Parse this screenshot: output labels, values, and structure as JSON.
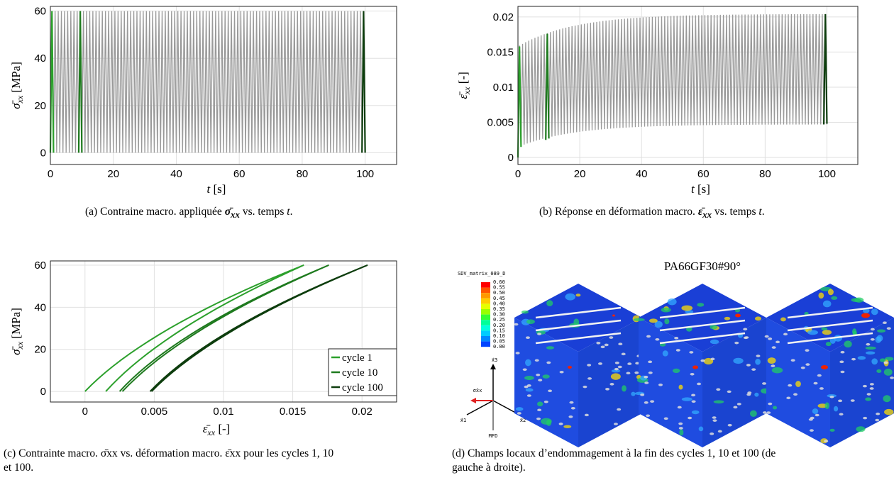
{
  "colors": {
    "gray": "#999999",
    "cycle1": "#2ca02c",
    "cycle10": "#1e7a1e",
    "cycle100": "#0d3d0d",
    "grid": "#e0e0e0"
  },
  "panel_a": {
    "ylabel_sym": "σ̄",
    "ylabel_sub": "xx",
    "ylabel_unit": "[MPa]",
    "xlabel_sym": "t",
    "xlabel_unit": "[s]",
    "caption_prefix": "(a) Contraine macro. appliquée",
    "caption_sym": "σ̄",
    "caption_sub": "xx",
    "caption_mid": "vs. temps",
    "caption_end": "t",
    "caption_tail": "."
  },
  "panel_b": {
    "ylabel_sym": "ε̄",
    "ylabel_sub": "xx",
    "ylabel_unit": "[-]",
    "xlabel_sym": "t",
    "xlabel_unit": "[s]",
    "caption_prefix": "(b) Réponse en déformation macro.",
    "caption_sym": "ε̄",
    "caption_sub": "xx",
    "caption_mid": "vs. temps",
    "caption_end": "t",
    "caption_tail": "."
  },
  "panel_c": {
    "ylabel_sym": "σ̄",
    "ylabel_sub": "xx",
    "ylabel_unit": "[MPa]",
    "xlabel_sym": "ε̄",
    "xlabel_sub": "xx",
    "xlabel_unit": "[-]",
    "caption_line1": "(c) Contrainte macro. σ̄xx vs. déformation macro. ε̄xx pour les cycles 1, 10",
    "caption_line2": "et 100."
  },
  "panel_d": {
    "title": "PA66GF30#90°",
    "colorbar_title": "SDV_matrix_089_D",
    "colorbar_labels": [
      "0.60",
      "0.55",
      "0.50",
      "0.45",
      "0.40",
      "0.35",
      "0.30",
      "0.25",
      "0.20",
      "0.15",
      "0.10",
      "0.05",
      "0.00"
    ],
    "axis_x3": "x⃗3",
    "axis_x1": "x⃗1",
    "axis_x2": "x⃗2",
    "axis_sigma": "σ̄xx",
    "axis_mfd": "MFD",
    "caption_line1": "(d) Champs locaux d’endommagement à la fin des cycles 1, 10 et 100 (de",
    "caption_line2": "gauche à droite)."
  },
  "chart_data": [
    {
      "type": "line",
      "title": "",
      "xlabel": "t [s]",
      "ylabel": "σ̄xx [MPa]",
      "xlim": [
        0,
        110
      ],
      "ylim": [
        -5,
        62
      ],
      "xticks": [
        0,
        20,
        40,
        60,
        80,
        100
      ],
      "yticks": [
        0,
        20,
        40,
        60
      ],
      "grid": true,
      "signal": {
        "min": 0,
        "max": 60,
        "cycles": 100,
        "period": 1
      },
      "series": [
        {
          "values_description_free": true,
          "x": [
            0,
            0.5,
            1
          ],
          "y": [
            0,
            60,
            0
          ]
        },
        {
          "x": [
            9,
            9.5,
            10
          ],
          "y": [
            0,
            60,
            0
          ]
        },
        {
          "x": [
            99,
            99.5,
            100
          ],
          "y": [
            0,
            60,
            0
          ]
        }
      ]
    },
    {
      "type": "line",
      "title": "",
      "xlabel": "t [s]",
      "ylabel": "ε̄xx [-]",
      "xlim": [
        0,
        110
      ],
      "ylim": [
        -0.001,
        0.0215
      ],
      "xticks": [
        0,
        20,
        40,
        60,
        80,
        100
      ],
      "yticks": [
        0,
        0.005,
        0.01,
        0.015,
        0.02
      ],
      "ytick_labels": [
        "0",
        "0.005",
        "0.01",
        "0.015",
        "0.02"
      ],
      "grid": true,
      "envelope": {
        "max_start": 0.0158,
        "max_end": 0.0204,
        "min_start": 0.0,
        "min_end": 0.0047
      },
      "series": [
        {
          "x": [
            0,
            0.5,
            1
          ],
          "y": [
            0,
            0.0158,
            0.0015
          ]
        },
        {
          "x": [
            9,
            9.5,
            10
          ],
          "y": [
            0.0025,
            0.0176,
            0.0027
          ]
        },
        {
          "x": [
            99,
            99.5,
            100
          ],
          "y": [
            0.0047,
            0.0204,
            0.0048
          ]
        }
      ]
    },
    {
      "type": "line",
      "title": "",
      "xlabel": "ε̄xx [-]",
      "ylabel": "σ̄xx [MPa]",
      "xlim": [
        -0.0025,
        0.0225
      ],
      "ylim": [
        -5,
        62
      ],
      "xticks": [
        0,
        0.005,
        0.01,
        0.015,
        0.02
      ],
      "xtick_labels": [
        "0",
        "0.005",
        "0.01",
        "0.015",
        "0.02"
      ],
      "yticks": [
        0,
        20,
        40,
        60
      ],
      "grid": true,
      "legend_position": "bottom-right",
      "series": [
        {
          "name": "cycle 1",
          "start": 0.0,
          "peak": 0.0158,
          "end": 0.0015
        },
        {
          "name": "cycle 10",
          "start": 0.0025,
          "peak": 0.0176,
          "end": 0.0027
        },
        {
          "name": "cycle 100",
          "start": 0.0047,
          "peak": 0.0204,
          "end": 0.0048
        }
      ]
    }
  ]
}
